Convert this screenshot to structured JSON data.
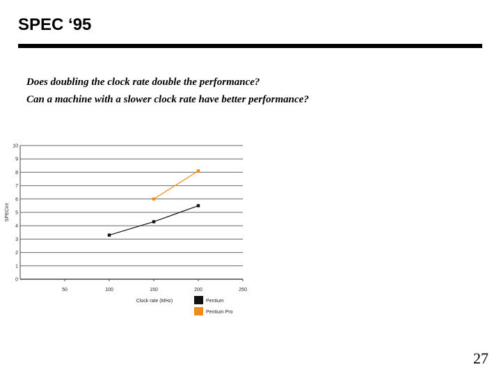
{
  "slide": {
    "title": "SPEC ‘95",
    "questions": [
      "Does doubling the clock rate double the performance?",
      "Can a machine with a slower clock rate have better performance?"
    ],
    "page_number": "27"
  },
  "chart_data": {
    "type": "line",
    "title": "",
    "xlabel": "Clock rate (MHz)",
    "ylabel": "SPECint",
    "xlim": [
      0,
      250
    ],
    "ylim": [
      0,
      10
    ],
    "x_ticks": [
      50,
      100,
      150,
      200,
      250
    ],
    "y_ticks": [
      0,
      1,
      2,
      3,
      4,
      5,
      6,
      7,
      8,
      9,
      10
    ],
    "grid": "horizontal",
    "legend_position": "bottom-right",
    "series": [
      {
        "name": "Pentium",
        "color": "#111111",
        "x": [
          100,
          150,
          200
        ],
        "y": [
          3.3,
          4.3,
          5.5
        ]
      },
      {
        "name": "Pentium Pro",
        "color": "#f08a1c",
        "x": [
          150,
          200
        ],
        "y": [
          6.0,
          8.1
        ]
      }
    ]
  }
}
